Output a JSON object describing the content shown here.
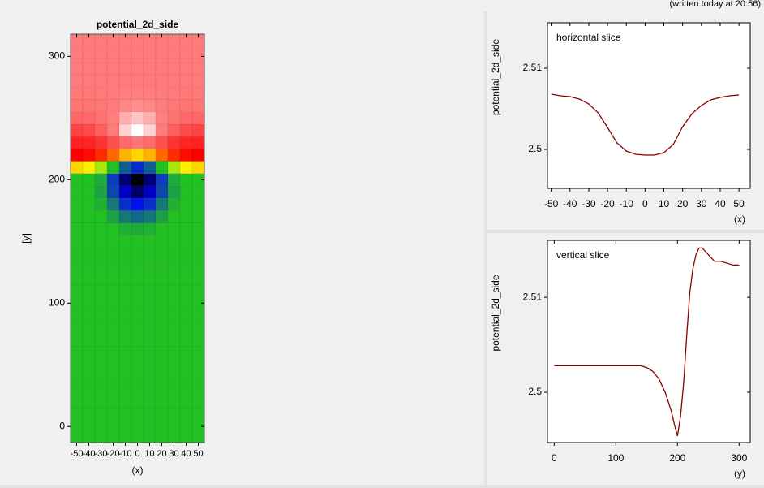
{
  "header": {
    "note": "(written today at 20:56)"
  },
  "chart_data": [
    {
      "type": "heatmap",
      "title": "potential_2d_side",
      "xlabel": "(x)",
      "ylabel": "[y]",
      "x": [
        -50,
        -40,
        -30,
        -20,
        -10,
        0,
        10,
        20,
        30,
        40,
        50
      ],
      "y": [
        -10,
        0,
        10,
        20,
        30,
        40,
        50,
        60,
        70,
        80,
        90,
        100,
        110,
        120,
        130,
        140,
        150,
        160,
        170,
        180,
        190,
        200,
        210,
        220,
        230,
        240,
        250,
        260,
        270,
        280,
        290,
        300,
        310,
        320
      ],
      "values": [
        [
          2.5027,
          2.5027,
          2.5027,
          2.5027,
          2.5027,
          2.5027,
          2.5027,
          2.5027,
          2.5027,
          2.5027,
          2.5027
        ],
        [
          2.5027,
          2.5027,
          2.5027,
          2.5027,
          2.5027,
          2.5027,
          2.5027,
          2.5027,
          2.5027,
          2.5027,
          2.5027
        ],
        [
          2.5027,
          2.5027,
          2.5027,
          2.5027,
          2.5027,
          2.5027,
          2.5027,
          2.5027,
          2.5027,
          2.5027,
          2.5027
        ],
        [
          2.5027,
          2.5027,
          2.5027,
          2.5027,
          2.5027,
          2.5027,
          2.5027,
          2.5027,
          2.5027,
          2.5027,
          2.5027
        ],
        [
          2.5027,
          2.5027,
          2.5027,
          2.5027,
          2.5027,
          2.5027,
          2.5027,
          2.5027,
          2.5027,
          2.5027,
          2.5027
        ],
        [
          2.5027,
          2.5027,
          2.5027,
          2.5027,
          2.5027,
          2.5027,
          2.5027,
          2.5027,
          2.5027,
          2.5027,
          2.5027
        ],
        [
          2.5027,
          2.5027,
          2.5027,
          2.5027,
          2.5027,
          2.5027,
          2.5027,
          2.5027,
          2.5027,
          2.5027,
          2.5027
        ],
        [
          2.5027,
          2.5027,
          2.5027,
          2.5027,
          2.5027,
          2.5027,
          2.5027,
          2.5027,
          2.5027,
          2.5027,
          2.5027
        ],
        [
          2.5027,
          2.5027,
          2.5027,
          2.5027,
          2.5027,
          2.5027,
          2.5027,
          2.5027,
          2.5027,
          2.5027,
          2.5027
        ],
        [
          2.5027,
          2.5027,
          2.5027,
          2.5027,
          2.5027,
          2.5027,
          2.5027,
          2.5027,
          2.5027,
          2.5027,
          2.5027
        ],
        [
          2.5027,
          2.5027,
          2.5027,
          2.5027,
          2.5027,
          2.5027,
          2.5027,
          2.5027,
          2.5027,
          2.5027,
          2.5027
        ],
        [
          2.5027,
          2.5027,
          2.5027,
          2.5027,
          2.5027,
          2.5027,
          2.5027,
          2.5027,
          2.5027,
          2.5027,
          2.5027
        ],
        [
          2.5027,
          2.5027,
          2.5027,
          2.5027,
          2.5027,
          2.5027,
          2.5027,
          2.5027,
          2.5027,
          2.5027,
          2.5027
        ],
        [
          2.5027,
          2.5027,
          2.5027,
          2.5027,
          2.5027,
          2.5027,
          2.5027,
          2.5027,
          2.5027,
          2.5027,
          2.5027
        ],
        [
          2.5027,
          2.5027,
          2.5027,
          2.5027,
          2.5027,
          2.5027,
          2.5027,
          2.5027,
          2.5027,
          2.5027,
          2.5027
        ],
        [
          2.5027,
          2.5027,
          2.5027,
          2.5027,
          2.5027,
          2.5027,
          2.5027,
          2.5027,
          2.5027,
          2.5027,
          2.5027
        ],
        [
          2.5027,
          2.5027,
          2.5027,
          2.5026,
          2.5025,
          2.5025,
          2.5025,
          2.5026,
          2.5027,
          2.5027,
          2.5027
        ],
        [
          2.5027,
          2.5027,
          2.5025,
          2.5022,
          2.5019,
          2.5018,
          2.5019,
          2.5022,
          2.5025,
          2.5027,
          2.5027
        ],
        [
          2.5027,
          2.5026,
          2.5023,
          2.5016,
          2.5008,
          2.5005,
          2.5008,
          2.5016,
          2.5023,
          2.5026,
          2.5027
        ],
        [
          2.5027,
          2.5025,
          2.5019,
          2.5008,
          2.4994,
          2.4988,
          2.4994,
          2.5008,
          2.5019,
          2.5025,
          2.5027
        ],
        [
          2.5027,
          2.5024,
          2.5016,
          2.4999,
          2.498,
          2.4972,
          2.498,
          2.4999,
          2.5016,
          2.5024,
          2.5027
        ],
        [
          2.5032,
          2.5029,
          2.5018,
          2.4997,
          2.4973,
          2.4963,
          2.4973,
          2.4997,
          2.5018,
          2.5029,
          2.5032
        ],
        [
          2.506,
          2.5057,
          2.5047,
          2.5026,
          2.5003,
          2.4993,
          2.5003,
          2.5026,
          2.5047,
          2.5057,
          2.506
        ],
        [
          2.5085,
          2.5084,
          2.508,
          2.5073,
          2.5064,
          2.506,
          2.5064,
          2.5073,
          2.508,
          2.5084,
          2.5085
        ],
        [
          2.5095,
          2.5096,
          2.51,
          2.5108,
          2.5116,
          2.512,
          2.5116,
          2.5108,
          2.51,
          2.5096,
          2.5095
        ],
        [
          2.5105,
          2.5107,
          2.5113,
          2.5124,
          2.5137,
          2.5143,
          2.5137,
          2.5124,
          2.5113,
          2.5107,
          2.5105
        ],
        [
          2.5115,
          2.5116,
          2.5119,
          2.5125,
          2.5132,
          2.5135,
          2.5132,
          2.5125,
          2.5119,
          2.5116,
          2.5115
        ],
        [
          2.512,
          2.512,
          2.5122,
          2.5124,
          2.5127,
          2.5128,
          2.5127,
          2.5124,
          2.5122,
          2.512,
          2.512
        ],
        [
          2.5122,
          2.5122,
          2.5123,
          2.5124,
          2.5125,
          2.5125,
          2.5125,
          2.5124,
          2.5123,
          2.5122,
          2.5122
        ],
        [
          2.5123,
          2.5123,
          2.5123,
          2.5123,
          2.5123,
          2.5123,
          2.5123,
          2.5123,
          2.5123,
          2.5123,
          2.5123
        ],
        [
          2.5123,
          2.5123,
          2.5123,
          2.5123,
          2.5123,
          2.5123,
          2.5123,
          2.5123,
          2.5123,
          2.5123,
          2.5123
        ],
        [
          2.5123,
          2.5123,
          2.5123,
          2.5123,
          2.5123,
          2.5123,
          2.5123,
          2.5123,
          2.5123,
          2.5123,
          2.5123
        ],
        [
          2.5123,
          2.5123,
          2.5123,
          2.5123,
          2.5123,
          2.5123,
          2.5123,
          2.5123,
          2.5123,
          2.5123,
          2.5123
        ],
        [
          2.5123,
          2.5123,
          2.5123,
          2.5123,
          2.5123,
          2.5123,
          2.5123,
          2.5123,
          2.5123,
          2.5123,
          2.5123
        ]
      ],
      "colorscale": [
        {
          "value": 2.4963,
          "color": "#000000"
        },
        {
          "value": 2.4985,
          "color": "#0000ff"
        },
        {
          "value": 2.5022,
          "color": "#22c022"
        },
        {
          "value": 2.5035,
          "color": "#22c022"
        },
        {
          "value": 2.5055,
          "color": "#ffff00"
        },
        {
          "value": 2.5085,
          "color": "#ff0000"
        },
        {
          "value": 2.5118,
          "color": "#ff7070"
        },
        {
          "value": 2.5126,
          "color": "#ff8080"
        },
        {
          "value": 2.5143,
          "color": "#ffffff"
        }
      ],
      "xlim": [
        -55,
        55
      ],
      "ylim": [
        -13,
        318
      ],
      "xticks": [
        -50,
        -40,
        -30,
        -20,
        -10,
        0,
        10,
        20,
        30,
        40,
        50
      ],
      "yticks": [
        0,
        100,
        200,
        300
      ]
    },
    {
      "type": "line",
      "title": "horizontal slice",
      "xlabel": "(x)",
      "ylabel": "potential_2d_side",
      "color": "#8b0000",
      "x": [
        -50,
        -45,
        -40,
        -35,
        -30,
        -25,
        -20,
        -15,
        -10,
        -5,
        0,
        5,
        10,
        15,
        20,
        25,
        30,
        35,
        40,
        45,
        50
      ],
      "values": [
        2.5068,
        2.5066,
        2.5065,
        2.5062,
        2.5056,
        2.5045,
        2.5027,
        2.5008,
        2.4998,
        2.4994,
        2.4993,
        2.4993,
        2.4996,
        2.5006,
        2.5028,
        2.5044,
        2.5054,
        2.5061,
        2.5064,
        2.5066,
        2.5067
      ],
      "xlim": [
        -52,
        56
      ],
      "ylim": [
        2.4952,
        2.5156
      ],
      "xticks": [
        -50,
        -40,
        -30,
        -20,
        -10,
        0,
        10,
        20,
        30,
        40,
        50
      ],
      "yticks": [
        2.5,
        2.51
      ]
    },
    {
      "type": "line",
      "title": "vertical slice",
      "xlabel": "(y)",
      "ylabel": "potential_2d_side",
      "color": "#8b0000",
      "x": [
        0,
        20,
        40,
        60,
        80,
        100,
        120,
        140,
        150,
        160,
        170,
        180,
        190,
        195,
        200,
        205,
        210,
        215,
        220,
        225,
        230,
        235,
        240,
        250,
        260,
        270,
        280,
        290,
        300
      ],
      "values": [
        2.5028,
        2.5028,
        2.5028,
        2.5028,
        2.5028,
        2.5028,
        2.5028,
        2.5028,
        2.5026,
        2.5022,
        2.5014,
        2.5,
        2.498,
        2.4966,
        2.4954,
        2.4975,
        2.501,
        2.506,
        2.5105,
        2.513,
        2.5145,
        2.5152,
        2.5152,
        2.5145,
        2.5138,
        2.5138,
        2.5136,
        2.5134,
        2.5134
      ],
      "xlim": [
        -11,
        318
      ],
      "ylim": [
        2.4947,
        2.516
      ],
      "xticks": [
        0,
        100,
        200,
        300
      ],
      "yticks": [
        2.5,
        2.51
      ]
    }
  ]
}
